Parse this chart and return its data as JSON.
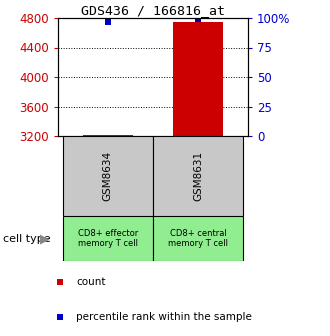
{
  "title": "GDS436 / 166816_at",
  "samples": [
    "GSM8634",
    "GSM8631"
  ],
  "cell_types": [
    "CD8+ effector\nmemory T cell",
    "CD8+ central\nmemory T cell"
  ],
  "cell_type_colors": [
    "#90EE90",
    "#90EE90"
  ],
  "expression_values": [
    3207,
    4750
  ],
  "percentile_values": [
    96.5,
    99.5
  ],
  "ylim_min": 3200,
  "ylim_max": 4800,
  "yticks_left": [
    3200,
    3600,
    4000,
    4400,
    4800
  ],
  "yticks_right": [
    0,
    25,
    50,
    75,
    100
  ],
  "ylabel_left_color": "#cc0000",
  "ylabel_right_color": "#0000cc",
  "bar_color": "#cc0000",
  "dot_color": "#0000cc",
  "sample_box_color": "#c8c8c8",
  "legend_count_color": "#cc0000",
  "legend_pct_color": "#0000cc",
  "bar_width": 0.55
}
